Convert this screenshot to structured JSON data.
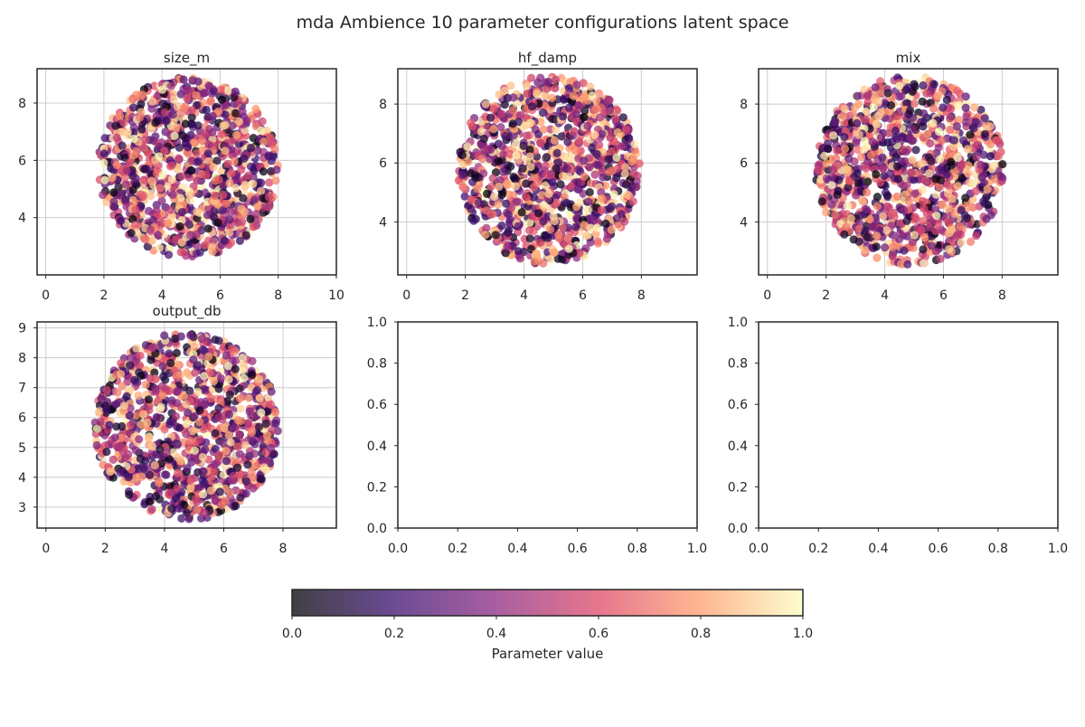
{
  "chart_data": {
    "type": "scatter",
    "title": "mda Ambience 10 parameter configurations latent space",
    "colormap": "magma",
    "point_alpha": 0.75,
    "colorbar": {
      "label": "Parameter value",
      "range": [
        0.0,
        1.0
      ],
      "ticks": [
        "0.0",
        "0.2",
        "0.4",
        "0.6",
        "0.8",
        "1.0"
      ],
      "stops": [
        "#000004",
        "#3b0f70",
        "#8c2981",
        "#de4968",
        "#fe9f6d",
        "#fcfdbf"
      ],
      "placement": "bottom"
    },
    "panels": [
      {
        "id": "size_m",
        "title": "size_m",
        "grid": true,
        "xlim": [
          -0.3,
          10
        ],
        "ylim": [
          2.0,
          9.2
        ],
        "xticks": [
          0,
          2,
          4,
          6,
          8,
          10
        ],
        "yticks": [
          4,
          6,
          8
        ],
        "cloud": {
          "cx": 4.9,
          "cy": 5.75,
          "rx": 3.1,
          "ry": 3.15,
          "n": 1100,
          "seed": 11
        }
      },
      {
        "id": "hf_damp",
        "title": "hf_damp",
        "grid": true,
        "xlim": [
          -0.3,
          9.9
        ],
        "ylim": [
          2.2,
          9.2
        ],
        "xticks": [
          0,
          2,
          4,
          6,
          8
        ],
        "yticks": [
          4,
          6,
          8
        ],
        "cloud": {
          "cx": 4.85,
          "cy": 5.75,
          "rx": 3.1,
          "ry": 3.2,
          "n": 1100,
          "seed": 23
        }
      },
      {
        "id": "mix",
        "title": "mix",
        "grid": true,
        "xlim": [
          -0.3,
          9.9
        ],
        "ylim": [
          2.2,
          9.2
        ],
        "xticks": [
          0,
          2,
          4,
          6,
          8
        ],
        "yticks": [
          4,
          6,
          8
        ],
        "cloud": {
          "cx": 4.85,
          "cy": 5.75,
          "rx": 3.2,
          "ry": 3.2,
          "n": 1100,
          "seed": 37
        }
      },
      {
        "id": "output_db",
        "title": "output_db",
        "grid": true,
        "xlim": [
          -0.3,
          9.8
        ],
        "ylim": [
          2.3,
          9.2
        ],
        "xticks": [
          0,
          2,
          4,
          6,
          8
        ],
        "yticks": [
          3,
          4,
          5,
          6,
          7,
          8,
          9
        ],
        "cloud": {
          "cx": 4.75,
          "cy": 5.7,
          "rx": 3.1,
          "ry": 3.15,
          "n": 1100,
          "seed": 51
        }
      },
      {
        "id": "empty_1",
        "title": "",
        "grid": false,
        "xlim": [
          0,
          1
        ],
        "ylim": [
          0,
          1
        ],
        "xticks": [
          "0.0",
          "0.2",
          "0.4",
          "0.6",
          "0.8",
          "1.0"
        ],
        "yticks": [
          "0.0",
          "0.2",
          "0.4",
          "0.6",
          "0.8",
          "1.0"
        ]
      },
      {
        "id": "empty_2",
        "title": "",
        "grid": false,
        "xlim": [
          0,
          1
        ],
        "ylim": [
          0,
          1
        ],
        "xticks": [
          "0.0",
          "0.2",
          "0.4",
          "0.6",
          "0.8",
          "1.0"
        ],
        "yticks": [
          "0.0",
          "0.2",
          "0.4",
          "0.6",
          "0.8",
          "1.0"
        ]
      }
    ]
  }
}
